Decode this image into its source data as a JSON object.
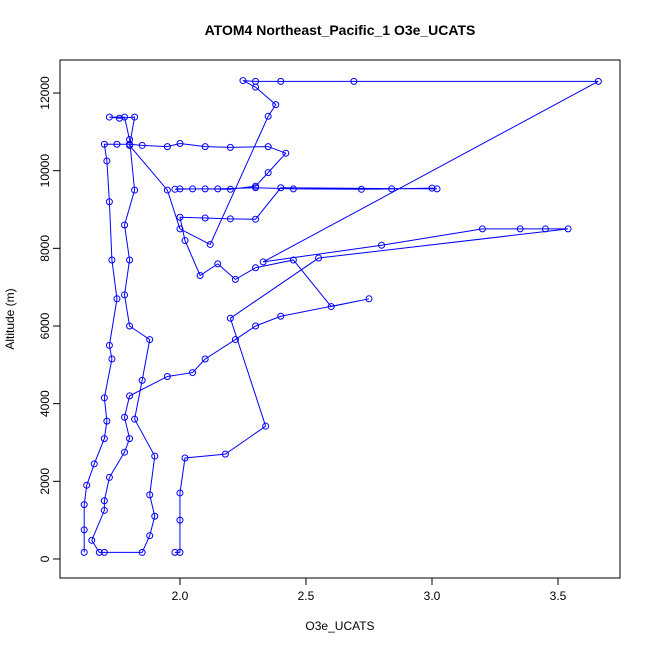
{
  "chart_data": {
    "type": "line",
    "title": "ATOM4 Northeast_Pacific_1 O3e_UCATS",
    "xlabel": "O3e_UCATS",
    "ylabel": "Altitude (m)",
    "x": [
      1.62,
      1.62,
      1.62,
      1.63,
      1.66,
      1.7,
      1.71,
      1.7,
      1.73,
      1.72,
      1.75,
      1.73,
      1.72,
      1.71,
      1.7,
      1.75,
      1.8,
      1.85,
      1.95,
      2.0,
      2.1,
      2.2,
      2.35,
      2.42,
      2.35,
      2.3,
      2.2,
      2.1,
      2.0,
      1.98,
      2.05,
      2.15,
      2.3,
      2.45,
      2.72,
      2.84,
      3.0,
      3.02,
      2.4,
      2.3,
      2.2,
      2.1,
      2.0,
      2.02,
      2.08,
      2.15,
      2.22,
      2.3,
      2.45,
      2.6,
      2.75,
      2.4,
      2.3,
      2.22,
      2.1,
      2.05,
      1.95,
      1.8,
      1.78,
      1.8,
      1.78,
      1.72,
      1.7,
      1.7,
      1.65,
      1.68,
      1.7,
      1.85,
      1.88,
      1.9,
      1.88,
      1.9,
      1.82,
      1.85,
      1.88,
      1.8,
      1.78,
      1.8,
      1.78,
      1.82,
      1.8,
      1.78,
      1.72,
      1.76,
      1.82,
      1.8,
      1.95,
      2.0,
      2.12,
      2.35,
      2.38,
      2.3,
      2.25,
      2.3,
      2.4,
      2.69,
      3.66,
      2.33,
      2.8,
      3.2,
      3.35,
      3.45,
      3.54,
      2.55,
      2.2,
      2.34,
      2.18,
      2.02,
      2.0,
      2.0,
      2.0,
      1.98
    ],
    "series": [
      {
        "name": "Altitude (m)",
        "color": "#0000ff",
        "values": [
          170,
          750,
          1400,
          1900,
          2450,
          3100,
          3550,
          4150,
          5150,
          5500,
          6700,
          7700,
          9200,
          10250,
          10680,
          10680,
          10680,
          10650,
          10620,
          10700,
          10620,
          10600,
          10620,
          10450,
          9950,
          9600,
          9520,
          9530,
          9530,
          9520,
          9530,
          9530,
          9560,
          9530,
          9520,
          9530,
          9550,
          9530,
          9560,
          8750,
          8760,
          8780,
          8800,
          8200,
          7300,
          7600,
          7200,
          7500,
          7700,
          6500,
          6700,
          6250,
          6000,
          5650,
          5150,
          4800,
          4700,
          4200,
          3650,
          3100,
          2750,
          2100,
          1500,
          1250,
          480,
          170,
          170,
          170,
          600,
          1100,
          1650,
          2650,
          3600,
          4600,
          5650,
          6000,
          6800,
          7700,
          8600,
          9500,
          10800,
          11380,
          11380,
          11350,
          11380,
          10650,
          9500,
          8500,
          8100,
          11400,
          11700,
          12150,
          12320,
          12300,
          12300,
          12300,
          12300,
          7650,
          8080,
          8500,
          8500,
          8500,
          8500,
          7750,
          6200,
          3420,
          2700,
          2600,
          1700,
          1000,
          170,
          170
        ]
      }
    ],
    "xlim": [
      1.524,
      3.746
    ],
    "ylim": [
      -490,
      12850
    ],
    "xticks": [
      {
        "value": 2,
        "label": "2.0"
      },
      2.5,
      {
        "value": 3,
        "label": "3.0"
      },
      3.5
    ],
    "yticks": [
      0,
      2000,
      4000,
      6000,
      8000,
      10000,
      12000
    ]
  }
}
